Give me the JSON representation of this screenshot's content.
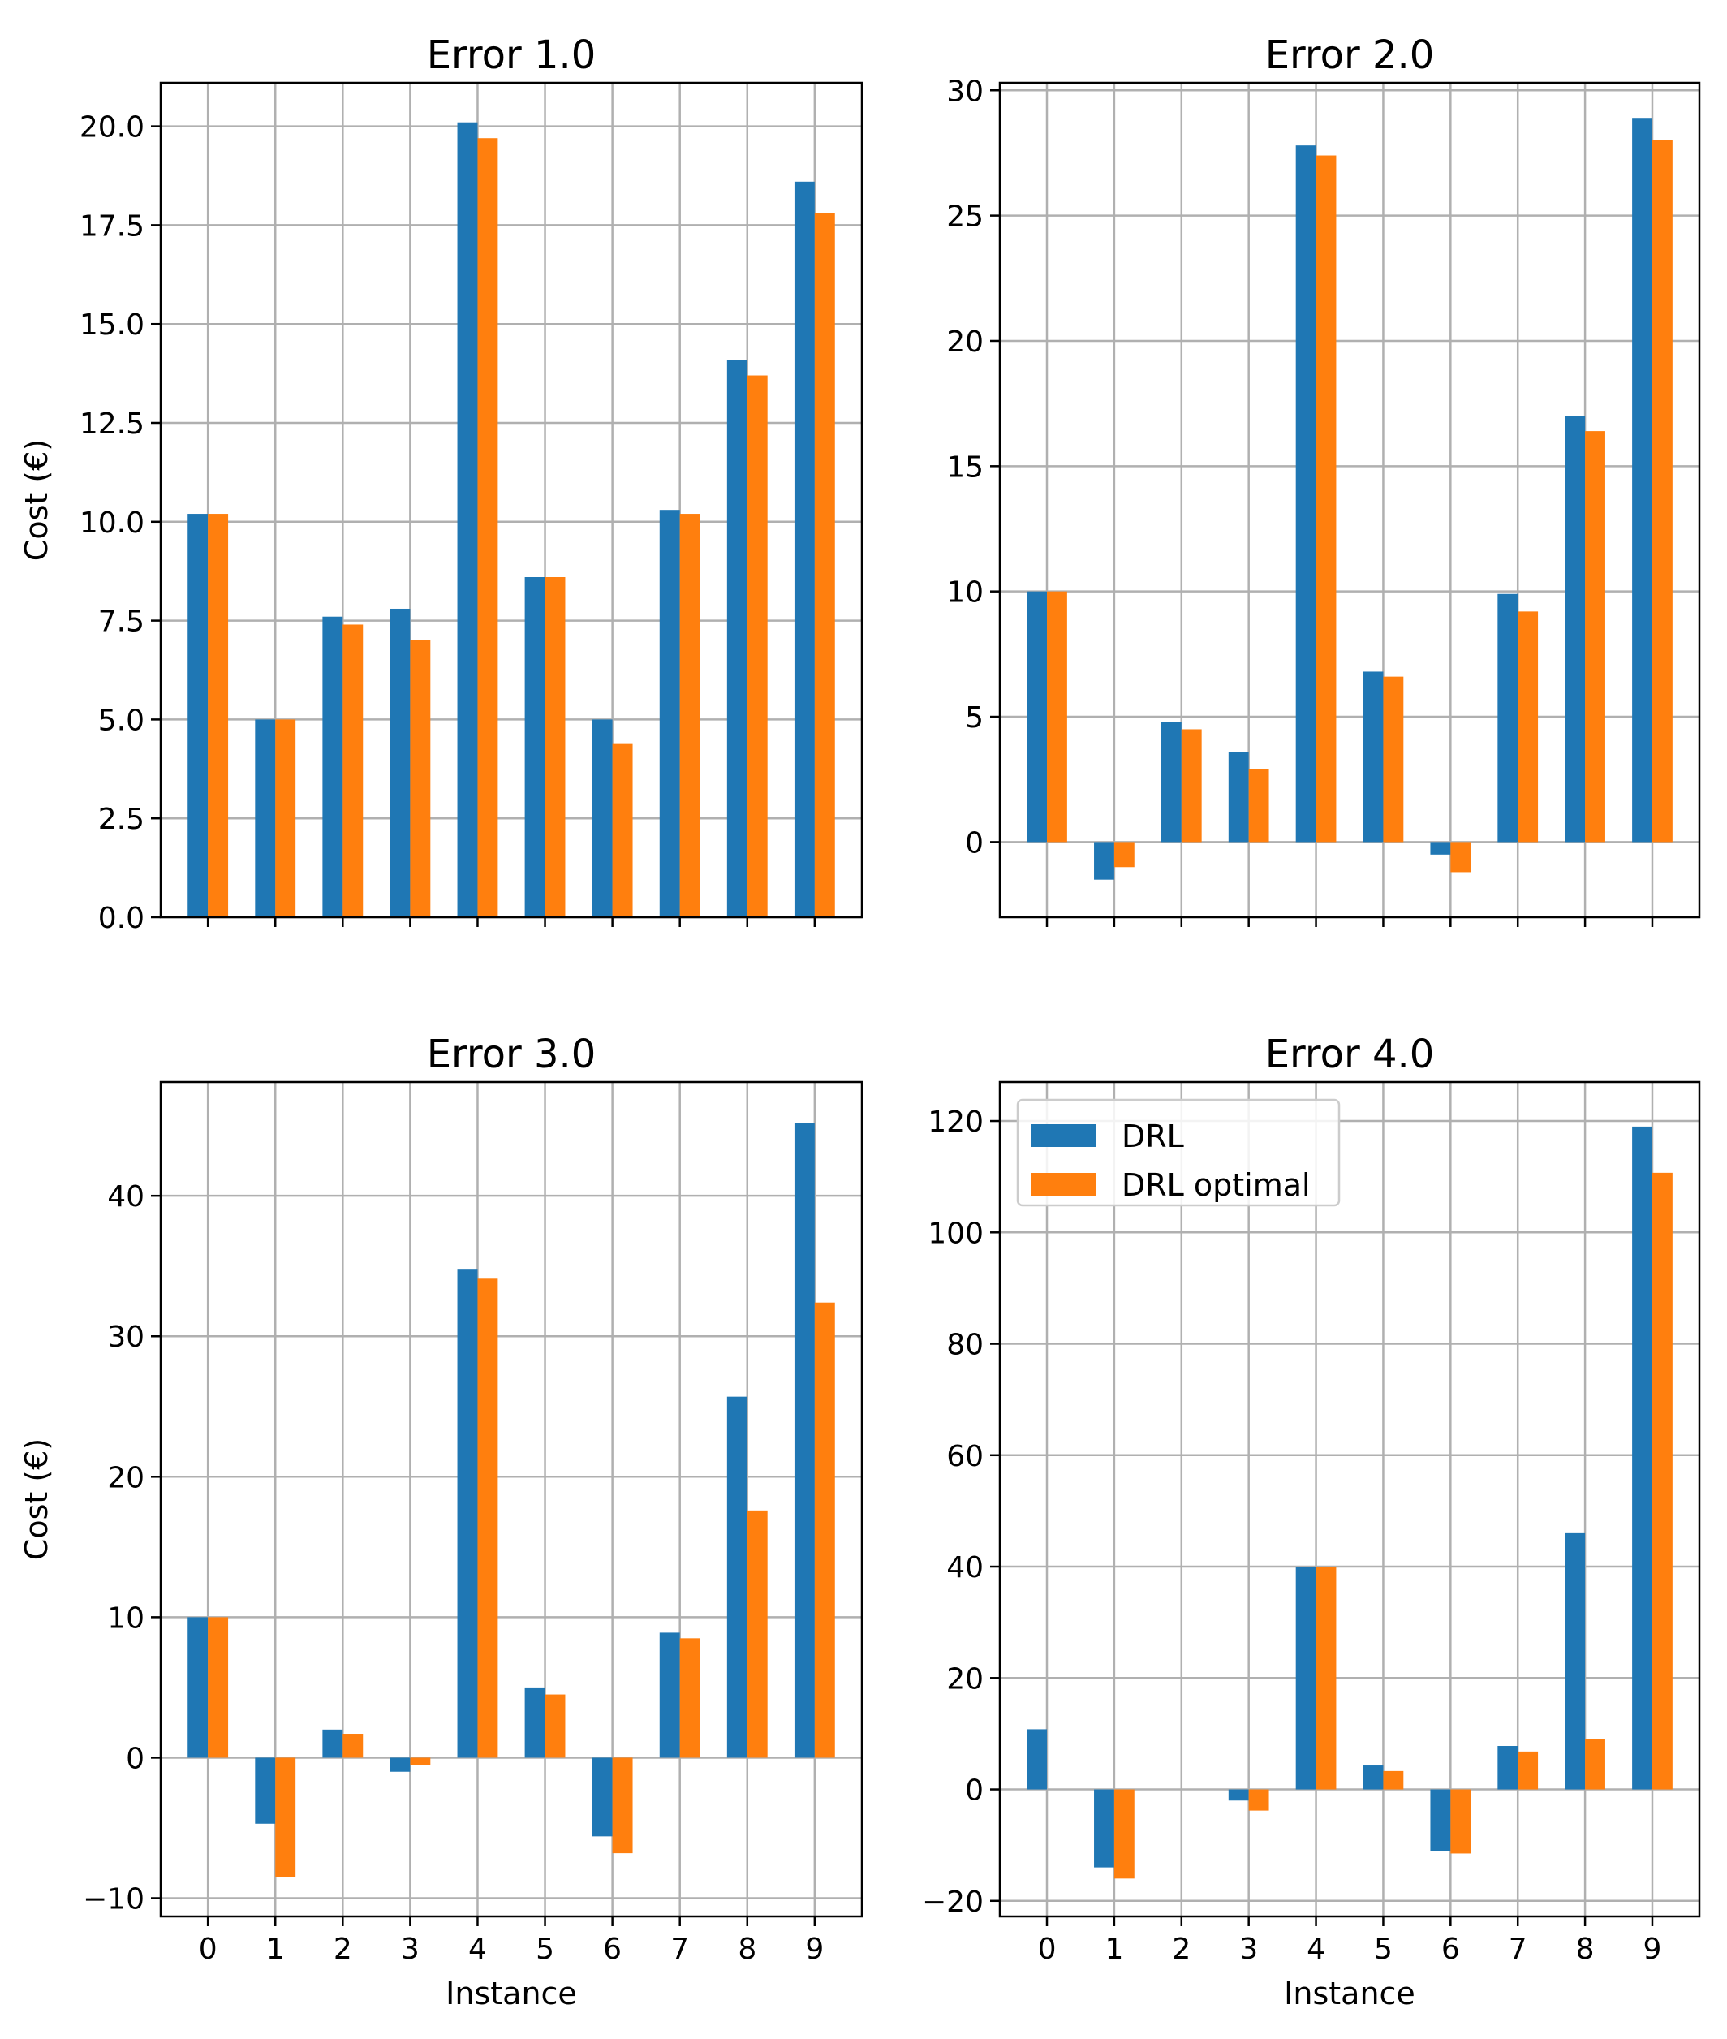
{
  "colors": {
    "drl": "#1f77b4",
    "drl_optimal": "#ff7f0e",
    "grid": "#b0b0b0"
  },
  "legend": {
    "items": [
      "DRL",
      "DRL optimal"
    ]
  },
  "chart_data": [
    {
      "type": "bar",
      "title": "Error 1.0",
      "xlabel": "",
      "ylabel": "Cost (€)",
      "categories": [
        "0",
        "1",
        "2",
        "3",
        "4",
        "5",
        "6",
        "7",
        "8",
        "9"
      ],
      "ylim": [
        0,
        21.1
      ],
      "yticks": [
        0,
        2.5,
        5,
        7.5,
        10,
        12.5,
        15,
        17.5,
        20
      ],
      "ytick_labels": [
        "0.0",
        "2.5",
        "5.0",
        "7.5",
        "10.0",
        "12.5",
        "15.0",
        "17.5",
        "20.0"
      ],
      "series": [
        {
          "name": "DRL",
          "values": [
            10.2,
            5.0,
            7.6,
            7.8,
            20.1,
            8.6,
            5.0,
            10.3,
            14.1,
            18.6
          ]
        },
        {
          "name": "DRL optimal",
          "values": [
            10.2,
            5.0,
            7.4,
            7.0,
            19.7,
            8.6,
            4.4,
            10.2,
            13.7,
            17.8
          ]
        }
      ]
    },
    {
      "type": "bar",
      "title": "Error 2.0",
      "xlabel": "",
      "ylabel": "",
      "categories": [
        "0",
        "1",
        "2",
        "3",
        "4",
        "5",
        "6",
        "7",
        "8",
        "9"
      ],
      "ylim": [
        -3.0,
        30.3
      ],
      "yticks": [
        0,
        5,
        10,
        15,
        20,
        25,
        30
      ],
      "ytick_labels": [
        "0",
        "5",
        "10",
        "15",
        "20",
        "25",
        "30"
      ],
      "series": [
        {
          "name": "DRL",
          "values": [
            10.0,
            -1.5,
            4.8,
            3.6,
            27.8,
            6.8,
            -0.5,
            9.9,
            17.0,
            28.9
          ]
        },
        {
          "name": "DRL optimal",
          "values": [
            10.0,
            -1.0,
            4.5,
            2.9,
            27.4,
            6.6,
            -1.2,
            9.2,
            16.4,
            28.0
          ]
        }
      ]
    },
    {
      "type": "bar",
      "title": "Error 3.0",
      "xlabel": "Instance",
      "ylabel": "Cost (€)",
      "categories": [
        "0",
        "1",
        "2",
        "3",
        "4",
        "5",
        "6",
        "7",
        "8",
        "9"
      ],
      "ylim": [
        -11.3,
        48.1
      ],
      "yticks": [
        -10,
        0,
        10,
        20,
        30,
        40
      ],
      "ytick_labels": [
        "−10",
        "0",
        "10",
        "20",
        "30",
        "40"
      ],
      "series": [
        {
          "name": "DRL",
          "values": [
            10.0,
            -4.7,
            2.0,
            -1.0,
            34.8,
            5.0,
            -5.6,
            8.9,
            25.7,
            45.2
          ]
        },
        {
          "name": "DRL optimal",
          "values": [
            10.0,
            -8.5,
            1.7,
            -0.5,
            34.1,
            4.5,
            -6.8,
            8.5,
            17.6,
            32.4
          ]
        }
      ]
    },
    {
      "type": "bar",
      "title": "Error 4.0",
      "xlabel": "Instance",
      "ylabel": "",
      "categories": [
        "0",
        "1",
        "2",
        "3",
        "4",
        "5",
        "6",
        "7",
        "8",
        "9"
      ],
      "ylim": [
        -22.8,
        127.0
      ],
      "yticks": [
        -20,
        0,
        20,
        40,
        60,
        80,
        100,
        120
      ],
      "ytick_labels": [
        "−20",
        "0",
        "20",
        "40",
        "60",
        "80",
        "100",
        "120"
      ],
      "legend_position": "upper-left",
      "series": [
        {
          "name": "DRL",
          "values": [
            10.8,
            -14.0,
            0.0,
            -2.0,
            40.0,
            4.3,
            -11.0,
            7.8,
            46.0,
            119.0
          ]
        },
        {
          "name": "DRL optimal",
          "values": [
            0.0,
            -16.0,
            0.0,
            -3.8,
            40.0,
            3.3,
            -11.5,
            6.8,
            9.0,
            110.7
          ]
        }
      ]
    }
  ]
}
